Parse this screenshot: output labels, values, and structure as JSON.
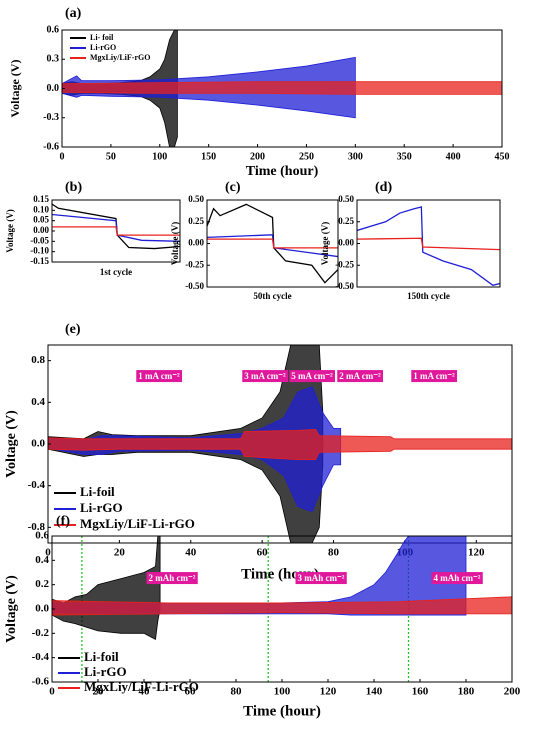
{
  "chart_data": [
    {
      "type": "band",
      "label": "(a)",
      "xlabel": "Time (hour)",
      "ylabel": "Voltage (V)",
      "xlim": [
        0,
        450
      ],
      "ylim": [
        -0.6,
        0.6
      ],
      "xticks": [
        0,
        50,
        100,
        150,
        200,
        250,
        300,
        350,
        400,
        450
      ],
      "yticks": [
        0.6,
        0.3,
        {
          "value": 0,
          "label": "0.0"
        },
        -0.3,
        -0.6
      ],
      "legend": "upper left",
      "series": [
        {
          "name": "Li- foil",
          "color": "#000000",
          "x": [
            0,
            10,
            20,
            40,
            60,
            80,
            90,
            100,
            105,
            110,
            115,
            118
          ],
          "high": [
            0.05,
            0.07,
            0.05,
            0.05,
            0.06,
            0.08,
            0.12,
            0.2,
            0.3,
            0.5,
            0.6,
            0.6
          ],
          "low": [
            -0.05,
            -0.07,
            -0.05,
            -0.05,
            -0.06,
            -0.08,
            -0.12,
            -0.2,
            -0.35,
            -0.6,
            -0.6,
            -0.5
          ]
        },
        {
          "name": "Li-rGO",
          "color": "#1f1fd6",
          "x": [
            0,
            15,
            20,
            50,
            100,
            150,
            200,
            250,
            300
          ],
          "high": [
            0.05,
            0.13,
            0.08,
            0.08,
            0.09,
            0.12,
            0.17,
            0.23,
            0.32
          ],
          "low": [
            -0.05,
            -0.09,
            -0.07,
            -0.08,
            -0.09,
            -0.12,
            -0.17,
            -0.23,
            -0.3
          ]
        },
        {
          "name": "MgxLiy/LiF-rGO",
          "color": "#e8211d",
          "x": [
            0,
            100,
            200,
            300,
            450
          ],
          "high": [
            0.05,
            0.06,
            0.07,
            0.07,
            0.07
          ],
          "low": [
            -0.04,
            -0.05,
            -0.05,
            -0.06,
            -0.06
          ]
        }
      ]
    },
    {
      "type": "line",
      "label": "(b)",
      "xlabel": "1st cycle",
      "ylabel": "Voltage (V)",
      "xlim": [
        0,
        1
      ],
      "ylim": [
        -0.15,
        0.15
      ],
      "yticks": [
        0.15,
        {
          "value": 0.1,
          "label": "0.10"
        },
        0.05,
        {
          "value": 0,
          "label": "0.00"
        },
        -0.05,
        {
          "value": -0.1,
          "label": "-0.10"
        },
        -0.15
      ],
      "series": [
        {
          "color": "#000000",
          "x": [
            0,
            0.05,
            0.5,
            0.51,
            0.6,
            0.8,
            1
          ],
          "values": [
            0.13,
            0.11,
            0.06,
            -0.02,
            -0.08,
            -0.085,
            -0.075
          ]
        },
        {
          "color": "#1f1fd6",
          "x": [
            0,
            0.5,
            0.51,
            0.7,
            1
          ],
          "values": [
            0.08,
            0.05,
            -0.02,
            -0.045,
            -0.05
          ]
        },
        {
          "color": "#e8211d",
          "x": [
            0,
            0.5,
            0.51,
            1
          ],
          "values": [
            0.02,
            0.02,
            -0.02,
            -0.02
          ]
        }
      ]
    },
    {
      "type": "line",
      "label": "(c)",
      "xlabel": "50th cycle",
      "ylabel": "Voltage (V)",
      "xlim": [
        0,
        1
      ],
      "ylim": [
        -0.5,
        0.5
      ],
      "yticks": [
        {
          "value": 0.5,
          "label": "0.50"
        },
        0.25,
        {
          "value": 0,
          "label": "0.00"
        },
        -0.25,
        {
          "value": -0.5,
          "label": "-0.50"
        }
      ],
      "series": [
        {
          "color": "#000000",
          "x": [
            0,
            0.05,
            0.1,
            0.3,
            0.5,
            0.51,
            0.6,
            0.8,
            0.9,
            1
          ],
          "values": [
            0.2,
            0.4,
            0.32,
            0.45,
            0.3,
            -0.05,
            -0.2,
            -0.25,
            -0.45,
            -0.3
          ]
        },
        {
          "color": "#1f1fd6",
          "x": [
            0,
            0.5,
            0.51,
            1
          ],
          "values": [
            0.07,
            0.1,
            -0.05,
            -0.15
          ]
        },
        {
          "color": "#e8211d",
          "x": [
            0,
            0.5,
            0.51,
            1
          ],
          "values": [
            0.05,
            0.05,
            -0.05,
            -0.05
          ]
        }
      ]
    },
    {
      "type": "line",
      "label": "(d)",
      "xlabel": "150th cycle",
      "ylabel": "Voltage (V)",
      "xlim": [
        0,
        1
      ],
      "ylim": [
        -0.5,
        0.5
      ],
      "yticks": [
        {
          "value": 0.5,
          "label": "0.50"
        },
        0.25,
        {
          "value": 0,
          "label": "0.00"
        },
        -0.25,
        {
          "value": -0.5,
          "label": "-0.50"
        }
      ],
      "series": [
        {
          "color": "#1f1fd6",
          "x": [
            0,
            0.2,
            0.3,
            0.4,
            0.45,
            0.46,
            0.6,
            0.8,
            0.95,
            1
          ],
          "values": [
            0.15,
            0.25,
            0.35,
            0.4,
            0.42,
            -0.1,
            -0.2,
            -0.3,
            -0.48,
            -0.46
          ]
        },
        {
          "color": "#e8211d",
          "x": [
            0,
            0.45,
            0.46,
            1
          ],
          "values": [
            0.05,
            0.06,
            -0.04,
            -0.07
          ]
        }
      ]
    },
    {
      "type": "band",
      "label": "(e)",
      "xlabel": "Time (hour)",
      "ylabel": "Voltage (V)",
      "xlim": [
        0,
        130
      ],
      "ylim": [
        -0.95,
        0.95
      ],
      "xticks": [
        0,
        20,
        40,
        60,
        80,
        100,
        120
      ],
      "yticks": [
        0.8,
        0.4,
        {
          "value": 0,
          "label": "0.0"
        },
        -0.4,
        -0.8
      ],
      "legend": "lower left",
      "annotations": [
        "1 mA cm⁻²",
        "3 mA cm⁻²",
        "5 mA cm⁻²",
        "2 mA cm⁻²",
        "1 mA cm⁻²"
      ],
      "series": [
        {
          "name": "Li-foil",
          "color": "#000000",
          "x": [
            0,
            10,
            14,
            18,
            25,
            40,
            54,
            60,
            65,
            68,
            70,
            72,
            74,
            76,
            77
          ],
          "high": [
            0.07,
            0.05,
            0.12,
            0.09,
            0.08,
            0.08,
            0.15,
            0.25,
            0.5,
            0.95,
            0.95,
            0.95,
            0.95,
            0.95,
            0.3
          ],
          "low": [
            -0.05,
            -0.12,
            -0.1,
            -0.1,
            -0.08,
            -0.08,
            -0.15,
            -0.25,
            -0.5,
            -0.95,
            -0.95,
            -0.95,
            -0.95,
            -0.8,
            -0.2
          ]
        },
        {
          "name": "Li-rGO",
          "color": "#1f1fd6",
          "x": [
            0,
            10,
            15,
            20,
            40,
            54,
            60,
            66,
            70,
            74,
            77,
            80,
            82
          ],
          "high": [
            0.05,
            0.04,
            0.08,
            0.08,
            0.06,
            0.1,
            0.15,
            0.25,
            0.5,
            0.55,
            0.3,
            0.15,
            0.15
          ],
          "low": [
            -0.04,
            -0.1,
            -0.1,
            -0.07,
            -0.06,
            -0.1,
            -0.15,
            -0.3,
            -0.6,
            -0.65,
            -0.4,
            -0.2,
            -0.2
          ]
        },
        {
          "name": "MgxLiy/LiF-Li-rGO",
          "color": "#e8211d",
          "x": [
            0,
            10,
            20,
            54,
            55,
            70,
            75,
            76,
            96,
            97,
            130
          ],
          "high": [
            0.06,
            0.05,
            0.05,
            0.05,
            0.12,
            0.13,
            0.14,
            0.08,
            0.07,
            0.05,
            0.05
          ],
          "low": [
            -0.05,
            -0.06,
            -0.05,
            -0.05,
            -0.12,
            -0.15,
            -0.15,
            -0.08,
            -0.07,
            -0.05,
            -0.05
          ]
        }
      ]
    },
    {
      "type": "band",
      "label": "(f)",
      "xlabel": "Time (hour)",
      "ylabel": "Voltage (V)",
      "xlim": [
        0,
        200
      ],
      "ylim": [
        -0.6,
        0.6
      ],
      "xticks": [
        0,
        20,
        40,
        60,
        80,
        100,
        120,
        140,
        160,
        180,
        200
      ],
      "yticks": [
        0.6,
        0.4,
        0.2,
        {
          "value": 0,
          "label": "0.0"
        },
        -0.2,
        -0.4,
        -0.6
      ],
      "legend": "lower left",
      "vlines": [
        13,
        94,
        155
      ],
      "annotations": [
        "2 mAh cm⁻²",
        "3 mAh cm⁻²",
        "4 mAh cm⁻²"
      ],
      "series": [
        {
          "name": "Li-foil",
          "color": "#000000",
          "x": [
            0,
            5,
            10,
            15,
            20,
            30,
            40,
            45,
            46,
            47
          ],
          "high": [
            0.08,
            0.05,
            0.1,
            0.12,
            0.2,
            0.25,
            0.3,
            0.35,
            0.6,
            0.6
          ],
          "low": [
            -0.05,
            -0.1,
            -0.12,
            -0.15,
            -0.18,
            -0.2,
            -0.2,
            -0.25,
            -0.1,
            0
          ]
        },
        {
          "name": "Li-rGO",
          "color": "#1f1fd6",
          "x": [
            0,
            40,
            100,
            120,
            130,
            140,
            145,
            150,
            153,
            155,
            160,
            165,
            170,
            175,
            180
          ],
          "high": [
            0.05,
            0.05,
            0.05,
            0.06,
            0.1,
            0.2,
            0.3,
            0.45,
            0.55,
            0.6,
            0.6,
            0.6,
            0.6,
            0.6,
            0.6
          ],
          "low": [
            -0.03,
            -0.04,
            -0.04,
            -0.04,
            -0.05,
            -0.05,
            -0.05,
            -0.05,
            -0.05,
            -0.05,
            -0.05,
            -0.05,
            -0.05,
            -0.05,
            -0.05
          ]
        },
        {
          "name": "MgxLiy/LiF-Li-rGO",
          "color": "#e8211d",
          "x": [
            0,
            50,
            100,
            150,
            200
          ],
          "high": [
            0.07,
            0.05,
            0.05,
            0.06,
            0.1
          ],
          "low": [
            -0.05,
            -0.04,
            -0.03,
            -0.04,
            -0.04
          ]
        }
      ]
    }
  ]
}
